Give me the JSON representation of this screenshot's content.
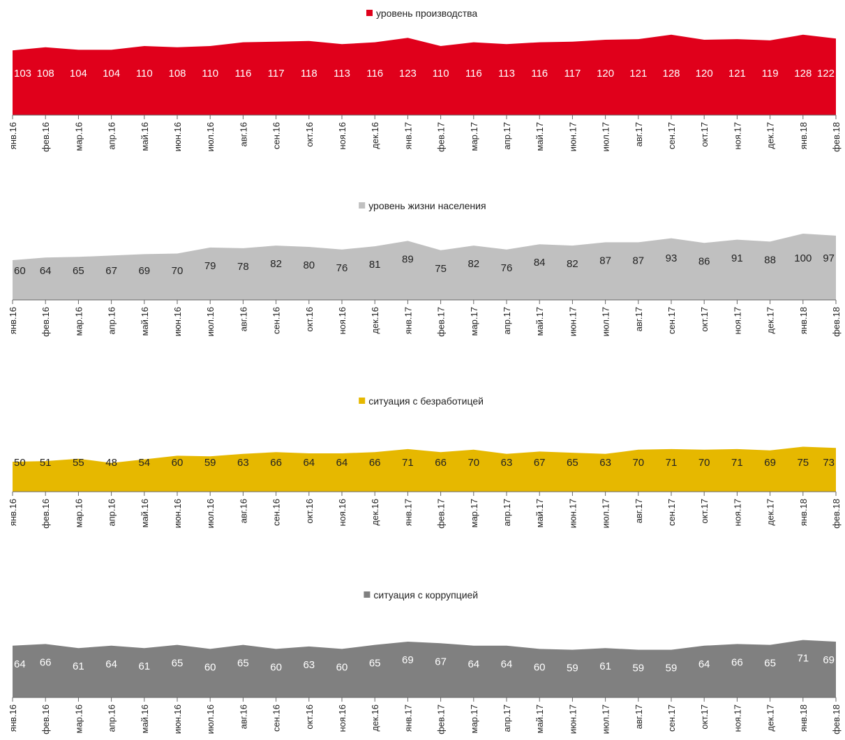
{
  "chart_data": [
    {
      "type": "area",
      "legend": "уровень производства",
      "color": "#e0001b",
      "label_color": "#ffffff",
      "categories": [
        "янв.16",
        "фев.16",
        "мар.16",
        "апр.16",
        "май.16",
        "июн.16",
        "июл.16",
        "авг.16",
        "сен.16",
        "окт.16",
        "ноя.16",
        "дек.16",
        "янв.17",
        "фев.17",
        "мар.17",
        "апр.17",
        "май.17",
        "июн.17",
        "июл.17",
        "авг.17",
        "сен.17",
        "окт.17",
        "ноя.17",
        "дек.17",
        "янв.18",
        "фев.18"
      ],
      "values": [
        103,
        108,
        104,
        104,
        110,
        108,
        110,
        116,
        117,
        118,
        113,
        116,
        123,
        110,
        116,
        113,
        116,
        117,
        120,
        121,
        128,
        120,
        121,
        119,
        128,
        122
      ],
      "labels": [
        "103",
        "108",
        "104",
        "104",
        "110",
        "108",
        "110",
        "116",
        "117",
        "118",
        "113",
        "116",
        "123",
        "110",
        "116",
        "113",
        "116",
        "117",
        "120",
        "121",
        "128",
        "120",
        "121",
        "119",
        "128",
        "122"
      ]
    },
    {
      "type": "area",
      "legend": "уровень жизни населения",
      "color": "#c0c0c0",
      "label_color": "#222222",
      "categories": [
        "янв.16",
        "фев.16",
        "мар.16",
        "апр.16",
        "май.16",
        "июн.16",
        "июл.16",
        "авг.16",
        "сен.16",
        "окт.16",
        "ноя.16",
        "дек.16",
        "янв.17",
        "фев.17",
        "мар.17",
        "апр.17",
        "май.17",
        "июн.17",
        "июл.17",
        "авг.17",
        "сен.17",
        "окт.17",
        "ноя.17",
        "дек.17",
        "янв.18",
        "фев.18"
      ],
      "values": [
        60,
        64,
        65,
        67,
        69,
        70,
        79,
        78,
        82,
        80,
        76,
        81,
        89,
        75,
        82,
        76,
        84,
        82,
        87,
        87,
        93,
        86,
        91,
        88,
        100,
        97
      ],
      "labels": [
        "60",
        "64",
        "65",
        "67",
        "69",
        "70",
        "79",
        "78",
        "82",
        "80",
        "76",
        "81",
        "89",
        "75",
        "82",
        "76",
        "84",
        "82",
        "87",
        "87",
        "93",
        "86",
        "91",
        "88",
        "100",
        "97"
      ]
    },
    {
      "type": "area",
      "legend": "ситуация с безработицей",
      "color": "#e6b800",
      "label_color": "#222222",
      "categories": [
        "янв.16",
        "фев.16",
        "мар.16",
        "апр.16",
        "май.16",
        "июн.16",
        "июл.16",
        "авг.16",
        "сен.16",
        "окт.16",
        "ноя.16",
        "дек.16",
        "янв.17",
        "фев.17",
        "мар.17",
        "апр.17",
        "май.17",
        "июн.17",
        "июл.17",
        "авг.17",
        "сен.17",
        "окт.17",
        "ноя.17",
        "дек.17",
        "янв.18",
        "фев.18"
      ],
      "values": [
        50,
        51,
        55,
        48,
        54,
        60,
        59,
        63,
        66,
        64,
        64,
        66,
        71,
        66,
        70,
        63,
        67,
        65,
        63,
        70,
        71,
        70,
        71,
        69,
        75,
        73
      ],
      "labels": [
        "50",
        "51",
        "55",
        "48",
        "54",
        "60",
        "59",
        "63",
        "66",
        "64",
        "64",
        "66",
        "71",
        "66",
        "70",
        "63",
        "67",
        "65",
        "63",
        "70",
        "71",
        "70",
        "71",
        "69",
        "75",
        "73"
      ]
    },
    {
      "type": "area",
      "legend": "ситуация с коррупцией",
      "color": "#808080",
      "label_color": "#ffffff",
      "categories": [
        "янв.16",
        "фев.16",
        "мар.16",
        "апр.16",
        "май.16",
        "июн.16",
        "июл.16",
        "авг.16",
        "сен.16",
        "окт.16",
        "ноя.16",
        "дек.16",
        "янв.17",
        "фев.17",
        "мар.17",
        "апр.17",
        "май.17",
        "июн.17",
        "июл.17",
        "авг.17",
        "сен.17",
        "окт.17",
        "ноя.17",
        "дек.17",
        "янв.18",
        "фев.18"
      ],
      "values": [
        64,
        66,
        61,
        64,
        61,
        65,
        60,
        65,
        60,
        63,
        60,
        65,
        69,
        67,
        64,
        64,
        60,
        59,
        61,
        59,
        59,
        64,
        66,
        65,
        71,
        69
      ],
      "labels": [
        "64",
        "66",
        "61",
        "64",
        "61",
        "65",
        "60",
        "65",
        "60",
        "63",
        "60",
        "65",
        "69",
        "67",
        "64",
        "64",
        "60",
        "59",
        "61",
        "59",
        "59",
        "64",
        "66",
        "65",
        "71",
        "69"
      ]
    }
  ]
}
